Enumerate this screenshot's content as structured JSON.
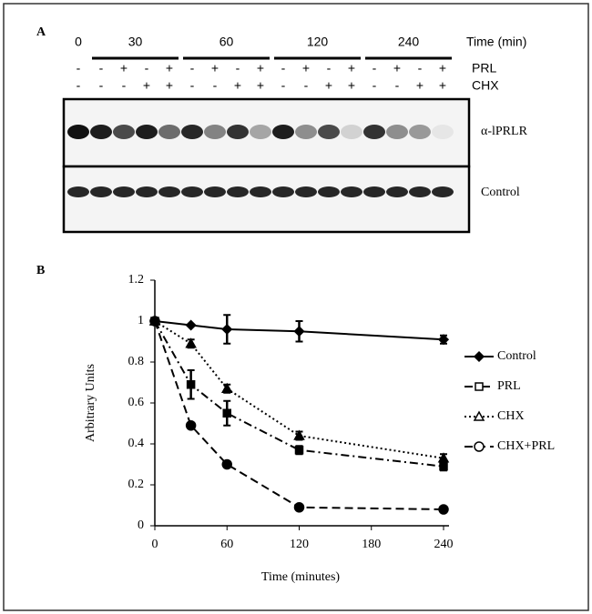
{
  "panel_a": {
    "label": "A",
    "time_header": "Time (min)",
    "times": [
      "0",
      "30",
      "60",
      "120",
      "240"
    ],
    "rows": [
      {
        "name": "PRL",
        "signs": [
          "-",
          "-",
          "+",
          "-",
          "+",
          "-",
          "+",
          "-",
          "+",
          "-",
          "+",
          "-",
          "+",
          "-",
          "+",
          "-",
          "+"
        ]
      },
      {
        "name": "CHX",
        "signs": [
          "-",
          "-",
          "-",
          "+",
          "+",
          "-",
          "-",
          "+",
          "+",
          "-",
          "-",
          "+",
          "+",
          "-",
          "-",
          "+",
          "+"
        ]
      }
    ],
    "blots": [
      "α-lPRLR",
      "Control"
    ]
  },
  "chart_data": {
    "type": "line",
    "panel_label": "B",
    "x_label": "Time (minutes)",
    "y_label": "Arbitrary Units",
    "x": [
      0,
      30,
      60,
      120,
      240
    ],
    "xlim": [
      0,
      240
    ],
    "xticks": [
      0,
      60,
      120,
      180,
      240
    ],
    "ylim": [
      0,
      1.2
    ],
    "yticks": [
      0,
      0.2,
      0.4,
      0.6,
      0.8,
      1,
      1.2
    ],
    "series": [
      {
        "name": "Control",
        "color": "#000000",
        "line_style": "solid",
        "marker": "diamond",
        "values": [
          1,
          0.98,
          0.96,
          0.95,
          0.91
        ],
        "errors": [
          null,
          null,
          0.07,
          0.05,
          0.02
        ]
      },
      {
        "name": "PRL",
        "color": "#000000",
        "line_style": "dashdot",
        "marker": "square",
        "values": [
          1,
          0.69,
          0.55,
          0.37,
          0.29
        ],
        "errors": [
          null,
          0.07,
          0.06,
          0.02,
          0.02
        ]
      },
      {
        "name": "CHX",
        "color": "#000000",
        "line_style": "dotted",
        "marker": "triangle",
        "values": [
          1,
          0.89,
          0.67,
          0.44,
          0.33
        ],
        "errors": [
          null,
          0.02,
          0.02,
          0.02,
          0.02
        ]
      },
      {
        "name": "CHX+PRL",
        "color": "#000000",
        "line_style": "dashed",
        "marker": "circle",
        "values": [
          1,
          0.49,
          0.3,
          0.09,
          0.08
        ],
        "errors": [
          null,
          null,
          null,
          null,
          null
        ]
      }
    ]
  }
}
